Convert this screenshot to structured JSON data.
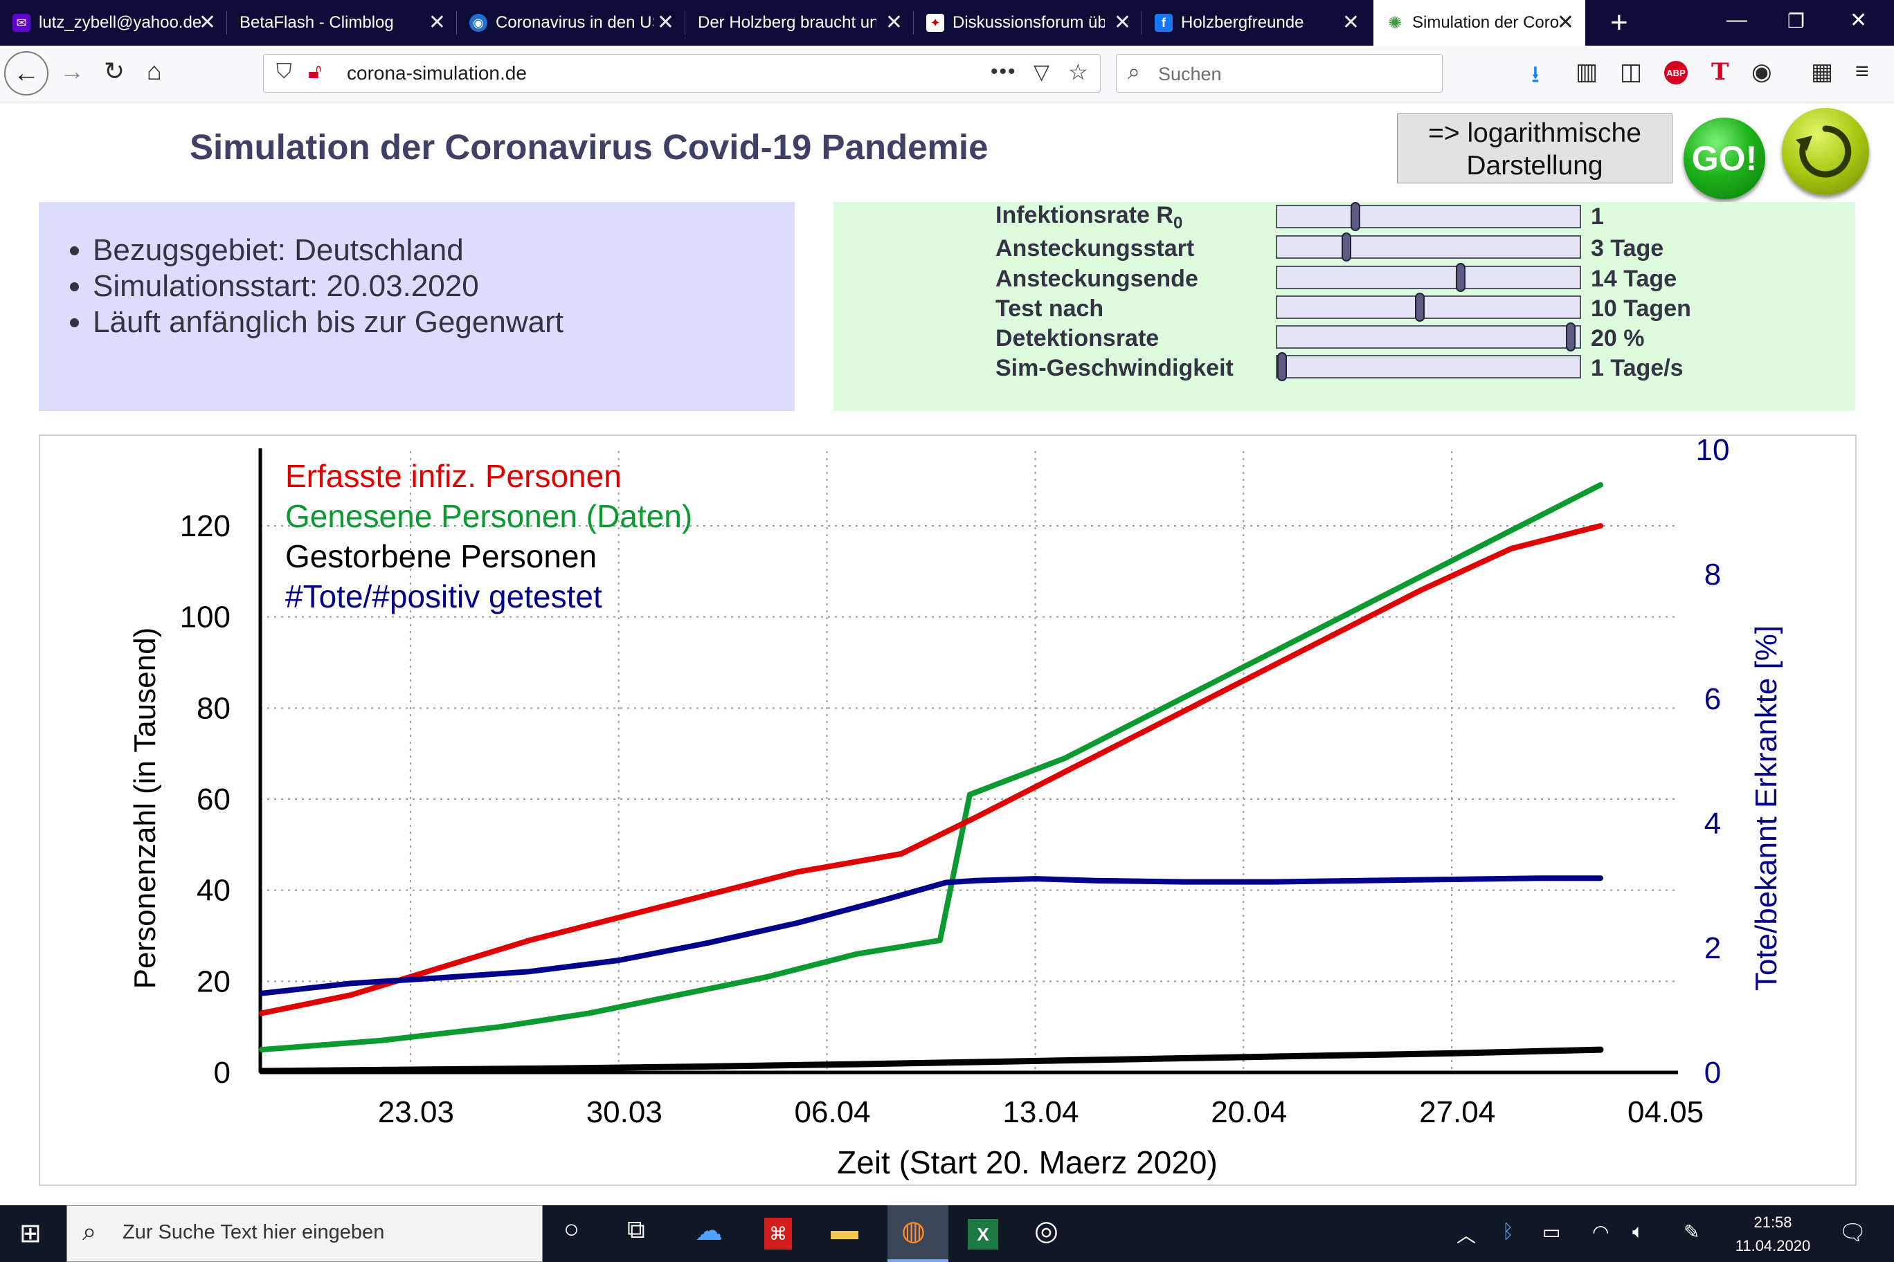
{
  "browser": {
    "tabs": [
      {
        "label": "lutz_zybell@yahoo.de",
        "icon": "yahoo-mail-icon",
        "active": false
      },
      {
        "label": "BetaFlash - Climblog",
        "icon": "",
        "active": false
      },
      {
        "label": "Coronavirus in den USA",
        "icon": "news-icon",
        "active": false
      },
      {
        "label": "Der Holzberg braucht uns",
        "icon": "",
        "active": false
      },
      {
        "label": "Diskussionsforum über",
        "icon": "forum-icon",
        "active": false
      },
      {
        "label": "Holzbergfreunde",
        "icon": "facebook-icon",
        "active": false
      },
      {
        "label": "Simulation der Corona",
        "icon": "virus-icon",
        "active": true
      }
    ],
    "url": "corona-simulation.de",
    "search_placeholder": "Suchen"
  },
  "page": {
    "title": "Simulation der Coronavirus Covid-19 Pandemie",
    "log_button": {
      "line1": "=> logarithmische",
      "line2": "Darstellung"
    },
    "go_label": "GO!",
    "info": [
      "Bezugsgebiet: Deutschland",
      "Simulationsstart: 20.03.2020",
      "Läuft anfänglich bis zur Gegenwart"
    ],
    "controls": [
      {
        "label": "Infektionsrate R",
        "subscript": "0",
        "value_text": "1",
        "position": 0.25
      },
      {
        "label": "Ansteckungsstart",
        "subscript": "",
        "value_text": "3 Tage",
        "position": 0.22
      },
      {
        "label": "Ansteckungsende",
        "subscript": "",
        "value_text": "14 Tage",
        "position": 0.61
      },
      {
        "label": "Test nach",
        "subscript": "",
        "value_text": "10 Tagen",
        "position": 0.47
      },
      {
        "label": "Detektionsrate",
        "subscript": "",
        "value_text": "20 %",
        "position": 0.985
      },
      {
        "label": "Sim-Geschwindigkeit",
        "subscript": "",
        "value_text": "1 Tage/s",
        "position": 0.0
      }
    ]
  },
  "chart_data": {
    "type": "line",
    "xlabel": "Zeit (Start 20. Maerz 2020)",
    "ylabel": "Personenzahl (in Tausend)",
    "y2label": "Tote/bekannt Erkrankte [%]",
    "x_range": [
      0,
      47
    ],
    "ylim": [
      0,
      135
    ],
    "y2lim": [
      0,
      10
    ],
    "x_ticks": [
      {
        "day": 5,
        "label": "23.03"
      },
      {
        "day": 12,
        "label": "30.03"
      },
      {
        "day": 19,
        "label": "06.04"
      },
      {
        "day": 26,
        "label": "13.04"
      },
      {
        "day": 33,
        "label": "20.04"
      },
      {
        "day": 40,
        "label": "27.04"
      },
      {
        "day": 47,
        "label": "04.05"
      }
    ],
    "y_ticks": [
      0,
      20,
      40,
      60,
      80,
      100,
      120
    ],
    "y2_ticks": [
      0,
      2,
      4,
      6,
      8,
      10
    ],
    "grid": true,
    "legend_position": "top-left",
    "series": [
      {
        "name": "Erfasste infiz. Personen",
        "axis": "left",
        "color": "#e00000",
        "points": [
          [
            0,
            13
          ],
          [
            3,
            17
          ],
          [
            6,
            23
          ],
          [
            9,
            29
          ],
          [
            12,
            34
          ],
          [
            15,
            39
          ],
          [
            18,
            44
          ],
          [
            21.5,
            48
          ],
          [
            24,
            56
          ],
          [
            27,
            66
          ],
          [
            30,
            76
          ],
          [
            33,
            86
          ],
          [
            36,
            96
          ],
          [
            39,
            106
          ],
          [
            42,
            115
          ],
          [
            45,
            120
          ]
        ]
      },
      {
        "name": "Genesene Personen (Daten)",
        "axis": "left",
        "color": "#0a9a30",
        "points": [
          [
            0,
            5
          ],
          [
            4,
            7
          ],
          [
            8,
            10
          ],
          [
            11,
            13
          ],
          [
            14,
            17
          ],
          [
            17,
            21
          ],
          [
            20,
            26
          ],
          [
            22.8,
            29
          ],
          [
            23.8,
            61
          ],
          [
            27,
            69
          ],
          [
            30,
            79
          ],
          [
            33,
            89
          ],
          [
            36,
            99
          ],
          [
            39,
            109
          ],
          [
            42,
            119
          ],
          [
            45,
            129
          ]
        ]
      },
      {
        "name": "Gestorbene Personen",
        "axis": "left",
        "color": "#000000",
        "points": [
          [
            0,
            0.3
          ],
          [
            5,
            0.6
          ],
          [
            10,
            0.9
          ],
          [
            15,
            1.3
          ],
          [
            20,
            1.8
          ],
          [
            25,
            2.4
          ],
          [
            30,
            3.0
          ],
          [
            35,
            3.6
          ],
          [
            40,
            4.2
          ],
          [
            45,
            5.0
          ]
        ]
      },
      {
        "name": "#Tote/#positiv getestet",
        "axis": "right",
        "color": "#00008b",
        "points": [
          [
            0,
            1.27
          ],
          [
            3,
            1.43
          ],
          [
            6,
            1.52
          ],
          [
            9,
            1.62
          ],
          [
            12,
            1.8
          ],
          [
            15,
            2.08
          ],
          [
            18,
            2.4
          ],
          [
            21,
            2.78
          ],
          [
            23,
            3.05
          ],
          [
            24,
            3.08
          ],
          [
            26,
            3.11
          ],
          [
            28,
            3.08
          ],
          [
            31,
            3.06
          ],
          [
            34,
            3.06
          ],
          [
            37,
            3.08
          ],
          [
            40,
            3.1
          ],
          [
            43,
            3.12
          ],
          [
            45,
            3.12
          ]
        ]
      }
    ]
  },
  "taskbar": {
    "search_placeholder": "Zur Suche Text hier eingeben",
    "time": "21:58",
    "date": "11.04.2020"
  }
}
